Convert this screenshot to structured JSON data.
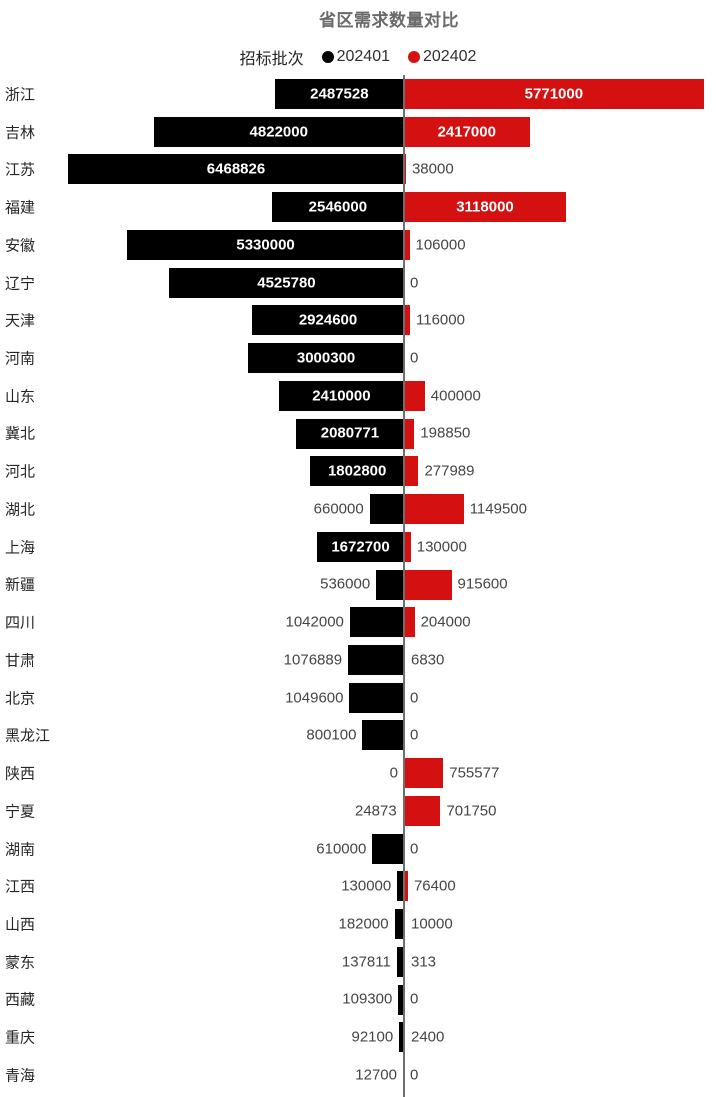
{
  "title": "省区需求数量对比",
  "legend": {
    "title": "招标批次",
    "items": [
      {
        "label": "202401",
        "color": "#000000"
      },
      {
        "label": "202402",
        "color": "#d41010"
      }
    ]
  },
  "colors": {
    "series_202401": "#000000",
    "series_202402": "#d41010",
    "axis_line": "#6e6e6e",
    "title_text": "#6a6a6a",
    "label_outside": "#454545",
    "label_inside": "#ffffff"
  },
  "chart_data": {
    "type": "bar",
    "orientation": "horizontal-diverging",
    "title": "省区需求数量对比",
    "legend_title": "招标批次",
    "legend_position": "top",
    "grid": false,
    "axis": {
      "center": 0,
      "max_left": 6468826,
      "max_right": 5771000
    },
    "categories": [
      "浙江",
      "吉林",
      "江苏",
      "福建",
      "安徽",
      "辽宁",
      "天津",
      "河南",
      "山东",
      "冀北",
      "河北",
      "湖北",
      "上海",
      "新疆",
      "四川",
      "甘肃",
      "北京",
      "黑龙江",
      "陕西",
      "宁夏",
      "湖南",
      "江西",
      "山西",
      "蒙东",
      "西藏",
      "重庆",
      "青海"
    ],
    "series": [
      {
        "name": "202401",
        "color": "#000000",
        "direction": "left",
        "values": [
          2487528,
          4822000,
          6468826,
          2546000,
          5330000,
          4525780,
          2924600,
          3000300,
          2410000,
          2080771,
          1802800,
          660000,
          1672700,
          536000,
          1042000,
          1076889,
          1049600,
          800100,
          0,
          24873,
          610000,
          130000,
          182000,
          137811,
          109300,
          92100,
          12700
        ]
      },
      {
        "name": "202402",
        "color": "#d41010",
        "direction": "right",
        "values": [
          5771000,
          2417000,
          38000,
          3118000,
          106000,
          0,
          116000,
          0,
          400000,
          198850,
          277989,
          1149500,
          130000,
          915600,
          204000,
          6830,
          0,
          0,
          755577,
          701750,
          0,
          76400,
          10000,
          313,
          0,
          2400,
          0
        ]
      }
    ]
  }
}
